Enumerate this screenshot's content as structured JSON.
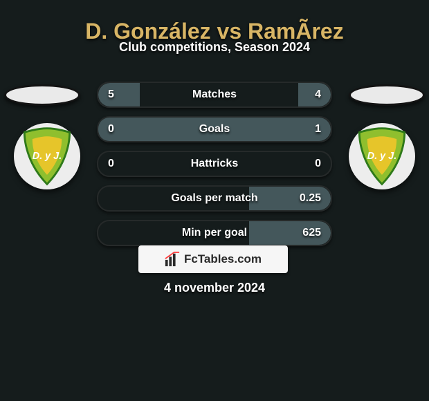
{
  "header": {
    "title": "D. González vs RamÃ­rez",
    "subtitle": "Club competitions, Season 2024"
  },
  "colors": {
    "background": "#151c1c",
    "title_color": "#d8b565",
    "bar_left": "#44575b",
    "bar_right": "#44575b",
    "bar_base": "#2b3535",
    "fctables_bg": "#f6f6f6",
    "fctables_text": "#2a2a2a"
  },
  "team_badge": {
    "shield_fill": "#8fbf2e",
    "shield_stroke": "#2f7a1a",
    "text": "D. y J.",
    "text_color": "#ffffff"
  },
  "stats": {
    "rows": [
      {
        "label": "Matches",
        "left": "5",
        "right": "4",
        "left_pct": 18,
        "right_pct": 14
      },
      {
        "label": "Goals",
        "left": "0",
        "right": "1",
        "left_pct": 0,
        "right_pct": 100
      },
      {
        "label": "Hattricks",
        "left": "0",
        "right": "0",
        "left_pct": 0,
        "right_pct": 0
      },
      {
        "label": "Goals per match",
        "left": "",
        "right": "0.25",
        "left_pct": 0,
        "right_pct": 35
      },
      {
        "label": "Min per goal",
        "left": "",
        "right": "625",
        "left_pct": 0,
        "right_pct": 35
      }
    ]
  },
  "footer": {
    "brand": "FcTables.com",
    "date": "4 november 2024"
  }
}
